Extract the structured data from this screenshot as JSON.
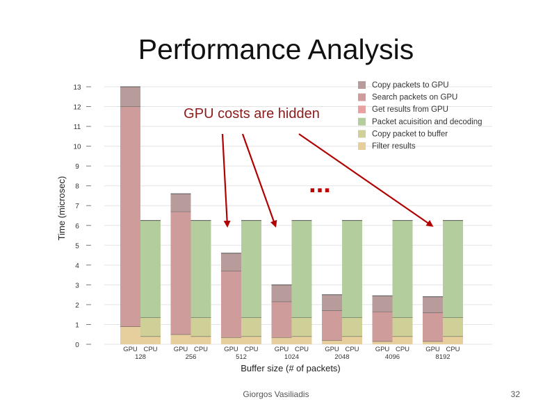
{
  "slide": {
    "title": "Performance Analysis",
    "footer": "Giorgos Vasiliadis",
    "page_number": "32"
  },
  "chart_data": {
    "type": "bar",
    "stacked": true,
    "title": "",
    "xlabel": "Buffer size (# of packets)",
    "ylabel": "Time (microsec)",
    "ylim": [
      0,
      13
    ],
    "yticks": [
      0,
      1,
      2,
      3,
      4,
      5,
      6,
      7,
      8,
      9,
      10,
      11,
      12,
      13
    ],
    "grid": true,
    "legend_position": "top-right",
    "groups": [
      "128",
      "256",
      "512",
      "1024",
      "2048",
      "4096",
      "8192"
    ],
    "bar_labels": [
      "GPU",
      "CPU"
    ],
    "series": [
      {
        "name": "Filter results",
        "color": "#e6cf9c",
        "values": {
          "GPU": [
            0.9,
            0.5,
            0.35,
            0.35,
            0.2,
            0.15,
            0.15
          ],
          "CPU": [
            0.4,
            0.4,
            0.4,
            0.4,
            0.4,
            0.4,
            0.4
          ]
        }
      },
      {
        "name": "Copy packet to buffer",
        "color": "#cfcf98",
        "values": {
          "GPU": [
            0,
            0,
            0,
            0,
            0,
            0,
            0
          ],
          "CPU": [
            0.95,
            0.95,
            0.95,
            0.95,
            0.95,
            0.95,
            0.95
          ]
        }
      },
      {
        "name": "Packet acuisition and decoding",
        "color": "#b3cd9c",
        "values": {
          "GPU": [
            0,
            0,
            0,
            0,
            0,
            0,
            0
          ],
          "CPU": [
            4.9,
            4.9,
            4.9,
            4.9,
            4.9,
            4.9,
            4.9
          ]
        }
      },
      {
        "name": "Get results from GPU",
        "color": "#e8a0a0",
        "values": {
          "GPU": [
            0,
            0,
            0,
            0,
            0,
            0,
            0
          ],
          "CPU": [
            0,
            0,
            0,
            0,
            0,
            0,
            0
          ]
        }
      },
      {
        "name": "Search packets on GPU",
        "color": "#cf9c9c",
        "values": {
          "GPU": [
            11.1,
            6.2,
            3.35,
            1.8,
            1.5,
            1.5,
            1.45
          ],
          "CPU": [
            0,
            0,
            0,
            0,
            0,
            0,
            0
          ]
        }
      },
      {
        "name": "Copy packets to GPU",
        "color": "#b89c9c",
        "values": {
          "GPU": [
            1.0,
            0.9,
            0.9,
            0.85,
            0.8,
            0.8,
            0.8
          ],
          "CPU": [
            0,
            0,
            0,
            0,
            0,
            0,
            0
          ]
        }
      }
    ],
    "annotations": [
      {
        "text": "GPU costs are hidden",
        "color": "#8b1a1a"
      },
      {
        "text": "...",
        "color": "#c00000"
      }
    ]
  }
}
